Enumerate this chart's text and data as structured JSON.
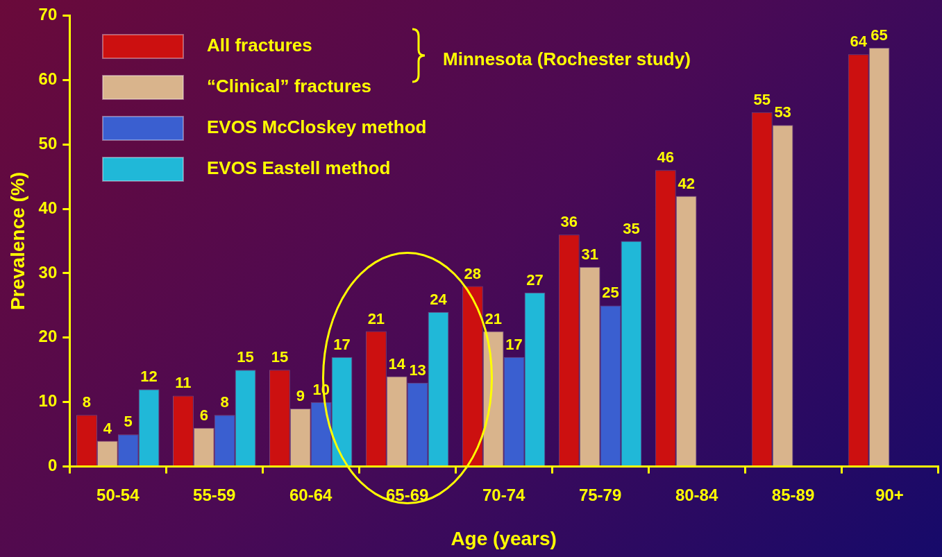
{
  "chart_data": {
    "type": "bar",
    "xlabel": "Age (years)",
    "ylabel": "Prevalence (%)",
    "categories": [
      "50-54",
      "55-59",
      "60-64",
      "65-69",
      "70-74",
      "75-79",
      "80-84",
      "85-89",
      "90+"
    ],
    "series": [
      {
        "name": "All fractures",
        "color": "#cc1010",
        "values": [
          8,
          11,
          15,
          21,
          28,
          36,
          46,
          55,
          64
        ]
      },
      {
        "name": "“Clinical” fractures",
        "color": "#d9b48c",
        "values": [
          4,
          6,
          9,
          14,
          21,
          31,
          42,
          53,
          65
        ]
      },
      {
        "name": "EVOS McCloskey method",
        "color": "#3a5fd0",
        "values": [
          5,
          8,
          10,
          13,
          17,
          25,
          null,
          null,
          null
        ]
      },
      {
        "name": "EVOS Eastell method",
        "color": "#20b8d8",
        "values": [
          12,
          15,
          17,
          24,
          27,
          35,
          null,
          null,
          null
        ]
      }
    ],
    "annotations": [
      "Minnesota (Rochester study)"
    ],
    "ylim": [
      0,
      70
    ],
    "yticks": [
      0,
      10,
      20,
      30,
      40,
      50,
      60,
      70
    ],
    "data_labels": true,
    "grid": false,
    "legend": "top left"
  }
}
